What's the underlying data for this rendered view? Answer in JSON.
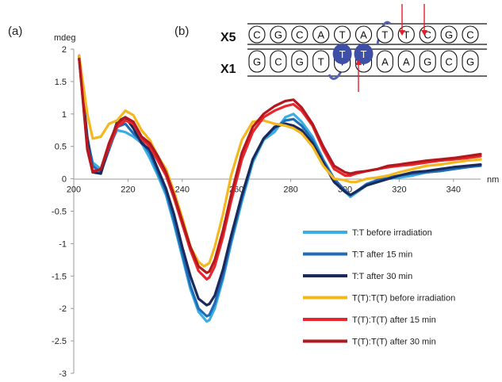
{
  "panel_labels": {
    "a": "(a)",
    "b": "(b)"
  },
  "dna_diagram": {
    "strand_top_label": "X5",
    "strand_bottom_label": "X1",
    "top_bases": [
      "C",
      "G",
      "C",
      "A",
      "T",
      "A",
      "T",
      "T",
      "C",
      "G",
      "C"
    ],
    "bottom_bases": [
      "G",
      "C",
      "G",
      "T",
      "T",
      "T",
      "A",
      "A",
      "G",
      "C",
      "G"
    ],
    "highlighted_bases": [
      "T",
      "T"
    ],
    "colors": {
      "highlight": "#3f4fa8",
      "linker": "#5563b5",
      "arrow": "#e0202a"
    }
  },
  "chart_data": {
    "type": "line",
    "ylabel": "mdeg",
    "xlabel": "nm",
    "xlim": [
      200,
      350
    ],
    "ylim": [
      -3,
      2
    ],
    "x_ticks": [
      "200",
      "220",
      "240",
      "260",
      "280",
      "300",
      "320",
      "340"
    ],
    "y_ticks": [
      "2",
      "1.5",
      "1",
      "0.5",
      "0",
      "-0.5",
      "-1",
      "-1.5",
      "-2",
      "-2.5",
      "-3"
    ],
    "grid": false,
    "legend_position": "bottom-right",
    "series": [
      {
        "name": "T:T before irradiation",
        "color": "#3aaee3",
        "x": [
          202,
          205,
          207,
          210,
          213,
          216,
          219,
          222,
          225,
          228,
          231,
          234,
          237,
          240,
          243,
          246,
          249,
          250,
          252,
          255,
          258,
          262,
          266,
          270,
          274,
          278,
          281,
          284,
          288,
          292,
          296,
          300,
          302,
          304,
          308,
          312,
          316,
          320,
          325,
          330,
          335,
          340,
          345,
          350
        ],
        "y": [
          1.9,
          0.6,
          0.25,
          0.15,
          0.5,
          0.75,
          0.72,
          0.65,
          0.55,
          0.32,
          0.05,
          -0.25,
          -0.7,
          -1.2,
          -1.7,
          -2.05,
          -2.2,
          -2.18,
          -2.0,
          -1.55,
          -1.0,
          -0.35,
          0.25,
          0.6,
          0.72,
          0.95,
          1.0,
          0.88,
          0.65,
          0.3,
          0.0,
          -0.2,
          -0.28,
          -0.22,
          -0.1,
          -0.05,
          0.0,
          0.02,
          0.05,
          0.1,
          0.12,
          0.15,
          0.18,
          0.22
        ]
      },
      {
        "name": "T:T after 15 min",
        "color": "#1f6db8",
        "x": [
          202,
          205,
          207,
          210,
          213,
          216,
          219,
          222,
          225,
          228,
          231,
          234,
          237,
          240,
          243,
          246,
          249,
          250,
          252,
          255,
          258,
          262,
          266,
          270,
          274,
          278,
          281,
          284,
          288,
          292,
          296,
          300,
          302,
          304,
          308,
          312,
          316,
          320,
          325,
          330,
          335,
          340,
          345,
          350
        ],
        "y": [
          1.85,
          0.65,
          0.2,
          0.1,
          0.45,
          0.8,
          0.85,
          0.7,
          0.58,
          0.4,
          0.1,
          -0.2,
          -0.65,
          -1.15,
          -1.65,
          -2.0,
          -2.12,
          -2.1,
          -1.92,
          -1.5,
          -0.95,
          -0.3,
          0.3,
          0.62,
          0.78,
          0.9,
          0.92,
          0.82,
          0.6,
          0.28,
          0.0,
          -0.18,
          -0.25,
          -0.2,
          -0.08,
          -0.02,
          0.02,
          0.05,
          0.08,
          0.1,
          0.12,
          0.15,
          0.18,
          0.2
        ]
      },
      {
        "name": "T:T after 30 min",
        "color": "#1b2a5c",
        "x": [
          202,
          205,
          207,
          210,
          213,
          216,
          219,
          222,
          225,
          228,
          231,
          234,
          237,
          240,
          243,
          246,
          249,
          250,
          252,
          255,
          258,
          262,
          266,
          270,
          274,
          278,
          281,
          284,
          288,
          292,
          296,
          300,
          302,
          304,
          308,
          312,
          316,
          320,
          325,
          330,
          335,
          340,
          345,
          350
        ],
        "y": [
          1.9,
          0.6,
          0.1,
          0.08,
          0.5,
          0.88,
          0.95,
          0.78,
          0.55,
          0.45,
          0.15,
          -0.15,
          -0.55,
          -1.05,
          -1.5,
          -1.85,
          -1.95,
          -1.93,
          -1.8,
          -1.4,
          -0.88,
          -0.25,
          0.3,
          0.62,
          0.8,
          0.85,
          0.82,
          0.75,
          0.55,
          0.25,
          -0.05,
          -0.2,
          -0.25,
          -0.2,
          -0.1,
          -0.05,
          0.0,
          0.05,
          0.1,
          0.12,
          0.15,
          0.18,
          0.2,
          0.22
        ]
      },
      {
        "name": "T(T):T(T) before irradiation",
        "color": "#f4b81e",
        "x": [
          202,
          205,
          207,
          210,
          213,
          216,
          219,
          222,
          225,
          228,
          231,
          234,
          237,
          240,
          243,
          246,
          248,
          250,
          252,
          255,
          258,
          262,
          266,
          270,
          274,
          278,
          281,
          284,
          288,
          292,
          296,
          300,
          302,
          304,
          308,
          312,
          316,
          320,
          325,
          330,
          335,
          340,
          345,
          350
        ],
        "y": [
          1.9,
          1.0,
          0.62,
          0.65,
          0.85,
          0.9,
          1.05,
          0.98,
          0.75,
          0.6,
          0.35,
          0.15,
          -0.2,
          -0.6,
          -1.05,
          -1.28,
          -1.35,
          -1.3,
          -1.05,
          -0.55,
          0.05,
          0.6,
          0.88,
          0.9,
          0.85,
          0.82,
          0.78,
          0.7,
          0.5,
          0.2,
          0.0,
          -0.02,
          -0.05,
          -0.05,
          0.0,
          0.02,
          0.05,
          0.1,
          0.15,
          0.2,
          0.22,
          0.25,
          0.28,
          0.3
        ]
      },
      {
        "name": "T(T):T(T) after 15 min",
        "color": "#e8262c",
        "x": [
          202,
          205,
          207,
          210,
          213,
          216,
          219,
          222,
          225,
          228,
          231,
          234,
          237,
          240,
          243,
          246,
          249,
          250,
          252,
          255,
          258,
          262,
          266,
          270,
          274,
          278,
          281,
          284,
          288,
          292,
          296,
          300,
          302,
          304,
          308,
          312,
          316,
          320,
          325,
          330,
          335,
          340,
          345,
          350
        ],
        "y": [
          1.85,
          0.5,
          0.12,
          0.15,
          0.5,
          0.8,
          0.9,
          0.85,
          0.62,
          0.5,
          0.28,
          0.05,
          -0.3,
          -0.7,
          -1.1,
          -1.42,
          -1.55,
          -1.52,
          -1.35,
          -0.9,
          -0.35,
          0.3,
          0.72,
          0.95,
          1.05,
          1.12,
          1.15,
          1.05,
          0.82,
          0.45,
          0.15,
          0.05,
          0.05,
          0.08,
          0.12,
          0.15,
          0.18,
          0.2,
          0.22,
          0.25,
          0.28,
          0.3,
          0.32,
          0.35
        ]
      },
      {
        "name": "T(T):T(T) after 30 min",
        "color": "#b3181f",
        "x": [
          202,
          205,
          207,
          210,
          213,
          216,
          219,
          222,
          225,
          228,
          231,
          234,
          237,
          240,
          243,
          246,
          249,
          250,
          252,
          255,
          258,
          262,
          266,
          270,
          274,
          278,
          281,
          284,
          288,
          292,
          296,
          300,
          302,
          304,
          308,
          312,
          316,
          320,
          325,
          330,
          335,
          340,
          345,
          350
        ],
        "y": [
          1.85,
          0.45,
          0.1,
          0.15,
          0.55,
          0.85,
          0.95,
          0.88,
          0.65,
          0.55,
          0.35,
          0.1,
          -0.25,
          -0.65,
          -1.05,
          -1.35,
          -1.45,
          -1.43,
          -1.25,
          -0.8,
          -0.25,
          0.4,
          0.8,
          1.0,
          1.12,
          1.2,
          1.22,
          1.1,
          0.85,
          0.5,
          0.2,
          0.1,
          0.08,
          0.1,
          0.12,
          0.15,
          0.2,
          0.22,
          0.25,
          0.28,
          0.3,
          0.32,
          0.35,
          0.38
        ]
      }
    ]
  }
}
